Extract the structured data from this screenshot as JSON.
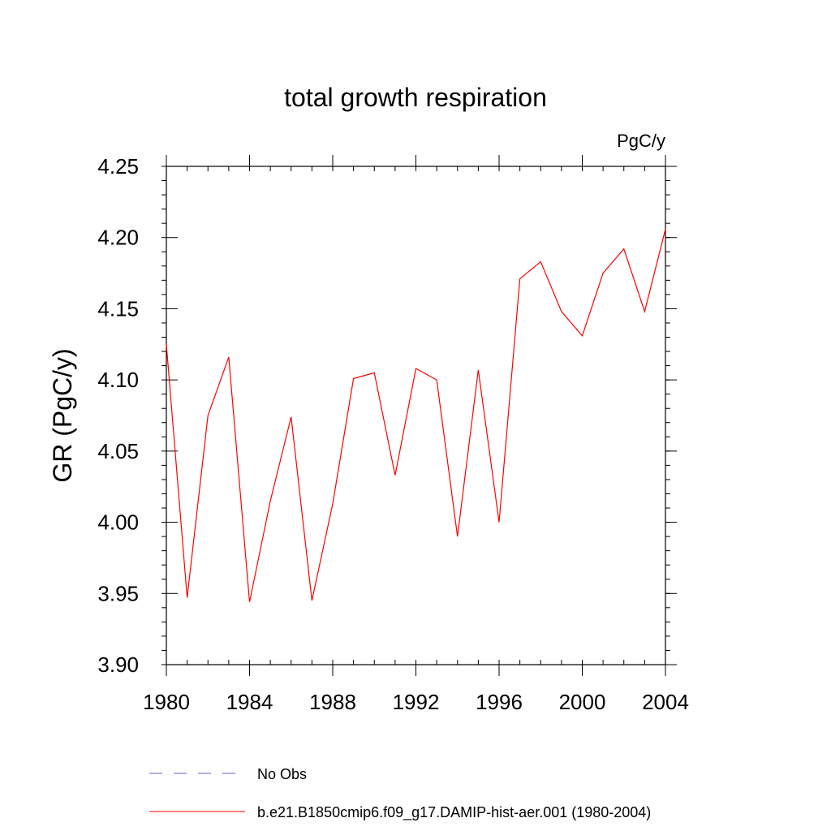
{
  "chart_data": {
    "type": "line",
    "title": "total growth respiration",
    "units_label": "PgC/y",
    "xlabel": "",
    "ylabel": "GR  (PgC/y)",
    "xlim": [
      1980,
      2004
    ],
    "ylim": [
      3.9,
      4.25
    ],
    "xticks": [
      "1980",
      "1984",
      "1988",
      "1992",
      "1996",
      "2000",
      "2004"
    ],
    "yticks": [
      "3.90",
      "3.95",
      "4.00",
      "4.05",
      "4.10",
      "4.15",
      "4.20",
      "4.25"
    ],
    "grid": false,
    "legend_position": "bottom",
    "x": [
      1980,
      1981,
      1982,
      1983,
      1984,
      1985,
      1986,
      1987,
      1988,
      1989,
      1990,
      1991,
      1992,
      1993,
      1994,
      1995,
      1996,
      1997,
      1998,
      1999,
      2000,
      2001,
      2002,
      2003,
      2004
    ],
    "series": [
      {
        "name": "b.e21.B1850cmip6.f09_g17.DAMIP-hist-aer.001 (1980-2004)",
        "color": "#ff0000",
        "values": [
          4.125,
          3.947,
          4.075,
          4.116,
          3.944,
          4.015,
          4.074,
          3.945,
          4.013,
          4.101,
          4.105,
          4.033,
          4.108,
          4.1,
          3.99,
          4.107,
          4.0,
          4.171,
          4.183,
          4.148,
          4.131,
          4.175,
          4.192,
          4.148,
          4.206
        ]
      }
    ],
    "legend": [
      {
        "label": "No Obs",
        "color": "#6a5acd",
        "style": "dashed"
      },
      {
        "label": "b.e21.B1850cmip6.f09_g17.DAMIP-hist-aer.001 (1980-2004)",
        "color": "#ff0000",
        "style": "solid"
      }
    ]
  }
}
